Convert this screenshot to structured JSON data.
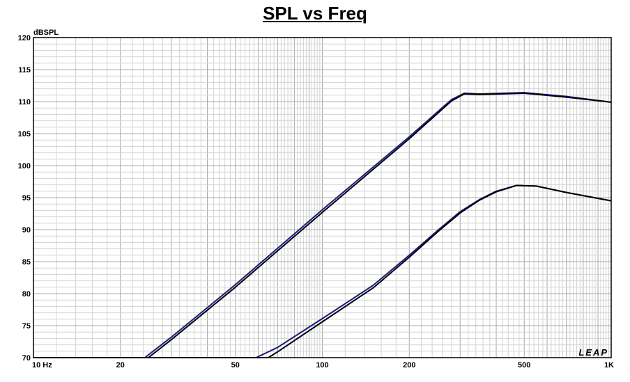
{
  "chart_data": {
    "type": "line",
    "title": "SPL vs Freq",
    "ylabel": "dBSPL",
    "xscale": "log",
    "xlim": [
      10,
      1000
    ],
    "ylim": [
      70,
      120
    ],
    "grid": true,
    "brand": "LEAP",
    "x_ticks": [
      {
        "value": 10,
        "label": "10  Hz"
      },
      {
        "value": 20,
        "label": "20"
      },
      {
        "value": 50,
        "label": "50"
      },
      {
        "value": 100,
        "label": "100"
      },
      {
        "value": 200,
        "label": "200"
      },
      {
        "value": 500,
        "label": "500"
      },
      {
        "value": 1000,
        "label": "1K"
      }
    ],
    "y_ticks": [
      70,
      75,
      80,
      85,
      90,
      95,
      100,
      105,
      110,
      115,
      120
    ],
    "series": [
      {
        "color": "#1a1a80",
        "points": [
          [
            10,
            70
          ],
          [
            24.3,
            70
          ],
          [
            30,
            73.2
          ],
          [
            50,
            81.4
          ],
          [
            100,
            93.1
          ],
          [
            200,
            104.5
          ],
          [
            280,
            110.3
          ],
          [
            310,
            111.3
          ],
          [
            350,
            111.2
          ],
          [
            500,
            111.4
          ],
          [
            700,
            110.8
          ],
          [
            1000,
            109.9
          ]
        ]
      },
      {
        "color": "#000000",
        "points": [
          [
            10,
            70
          ],
          [
            25,
            70
          ],
          [
            30,
            72.8
          ],
          [
            50,
            81.0
          ],
          [
            100,
            92.7
          ],
          [
            200,
            104.2
          ],
          [
            280,
            110.1
          ],
          [
            310,
            111.2
          ],
          [
            350,
            111.1
          ],
          [
            500,
            111.3
          ],
          [
            700,
            110.7
          ],
          [
            1000,
            109.9
          ]
        ]
      },
      {
        "color": "#1a1a80",
        "points": [
          [
            10,
            70
          ],
          [
            59,
            70
          ],
          [
            70,
            71.6
          ],
          [
            100,
            76.1
          ],
          [
            150,
            81.3
          ],
          [
            200,
            86.0
          ],
          [
            250,
            89.8
          ],
          [
            300,
            92.8
          ],
          [
            350,
            94.7
          ],
          [
            400,
            96.0
          ],
          [
            470,
            96.9
          ],
          [
            550,
            96.8
          ],
          [
            700,
            95.8
          ],
          [
            1000,
            94.5
          ]
        ]
      },
      {
        "color": "#000000",
        "points": [
          [
            10,
            70
          ],
          [
            65,
            70
          ],
          [
            70,
            70.9
          ],
          [
            100,
            75.6
          ],
          [
            150,
            80.9
          ],
          [
            200,
            85.7
          ],
          [
            250,
            89.6
          ],
          [
            300,
            92.6
          ],
          [
            350,
            94.6
          ],
          [
            400,
            95.9
          ],
          [
            470,
            96.9
          ],
          [
            550,
            96.8
          ],
          [
            700,
            95.8
          ],
          [
            1000,
            94.5
          ]
        ]
      }
    ]
  }
}
